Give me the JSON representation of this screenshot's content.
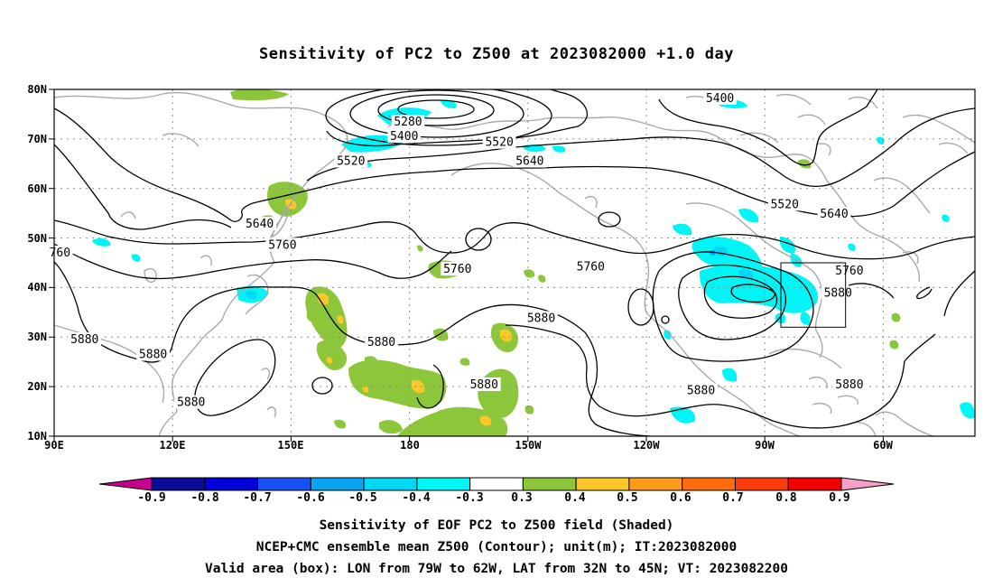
{
  "title": "Sensitivity of PC2 to Z500 at 2023082000 +1.0 day",
  "lat_labels": [
    "80N",
    "70N",
    "60N",
    "50N",
    "40N",
    "30N",
    "20N",
    "10N"
  ],
  "lon_labels": [
    "90E",
    "120E",
    "150E",
    "180",
    "150W",
    "120W",
    "90W",
    "60W"
  ],
  "colorbar": {
    "ticks": [
      "-0.9",
      "-0.8",
      "-0.7",
      "-0.6",
      "-0.5",
      "-0.4",
      "-0.3",
      "0.3",
      "0.4",
      "0.5",
      "0.6",
      "0.7",
      "0.8",
      "0.9"
    ],
    "colors": [
      "#0a0a9a",
      "#0000d8",
      "#1850f5",
      "#0aa4f0",
      "#00d8f6",
      "#00f6f6",
      "#ffffff",
      "#8cc63a",
      "#fdc729",
      "#ff9a1a",
      "#ff6a0a",
      "#ff3a0a",
      "#f00000"
    ],
    "low_extension_color": "#c8008c",
    "high_extension_color": "#f5a0c8"
  },
  "contour_labels": [
    {
      "text": "5280",
      "lon": 183,
      "lat": 73.4
    },
    {
      "text": "5400",
      "lon": 182,
      "lat": 70.5
    },
    {
      "text": "5400",
      "lon": 265,
      "lat": 78.2
    },
    {
      "text": "5520",
      "lon": 168,
      "lat": 65.5
    },
    {
      "text": "5520",
      "lon": 207,
      "lat": 69.3
    },
    {
      "text": "5520",
      "lon": 282,
      "lat": 56.8
    },
    {
      "text": "5640",
      "lon": 144,
      "lat": 52.8
    },
    {
      "text": "5640",
      "lon": 215,
      "lat": 65.5
    },
    {
      "text": "5640",
      "lon": 295,
      "lat": 54.8
    },
    {
      "text": "5760",
      "lon": 150,
      "lat": 48.6
    },
    {
      "text": "5760",
      "lon": 196,
      "lat": 43.7
    },
    {
      "text": "5760",
      "lon": 231,
      "lat": 44.2
    },
    {
      "text": "5760",
      "lon": 299,
      "lat": 43.4
    },
    {
      "text": "760",
      "lon": 91.5,
      "lat": 47.0
    },
    {
      "text": "5880",
      "lon": 98,
      "lat": 29.5
    },
    {
      "text": "5880",
      "lon": 116,
      "lat": 26.5
    },
    {
      "text": "5880",
      "lon": 126,
      "lat": 16.8
    },
    {
      "text": "5880",
      "lon": 176,
      "lat": 29.0
    },
    {
      "text": "5880",
      "lon": 203,
      "lat": 20.4
    },
    {
      "text": "5880",
      "lon": 218,
      "lat": 33.8
    },
    {
      "text": "5880",
      "lon": 260,
      "lat": 19.2
    },
    {
      "text": "5880",
      "lon": 296,
      "lat": 38.9
    },
    {
      "text": "5880",
      "lon": 299,
      "lat": 20.4
    }
  ],
  "valid_box": {
    "lon_west": -79,
    "lon_east": -62,
    "lat_south": 32,
    "lat_north": 45
  },
  "captions": [
    "Sensitivity of EOF PC2 to Z500 field (Shaded)",
    "NCEP+CMC ensemble mean Z500 (Contour); unit(m); IT:2023082000",
    "Valid area (box): LON from 79W to 62W, LAT from 32N to 45N; VT: 2023082200"
  ]
}
